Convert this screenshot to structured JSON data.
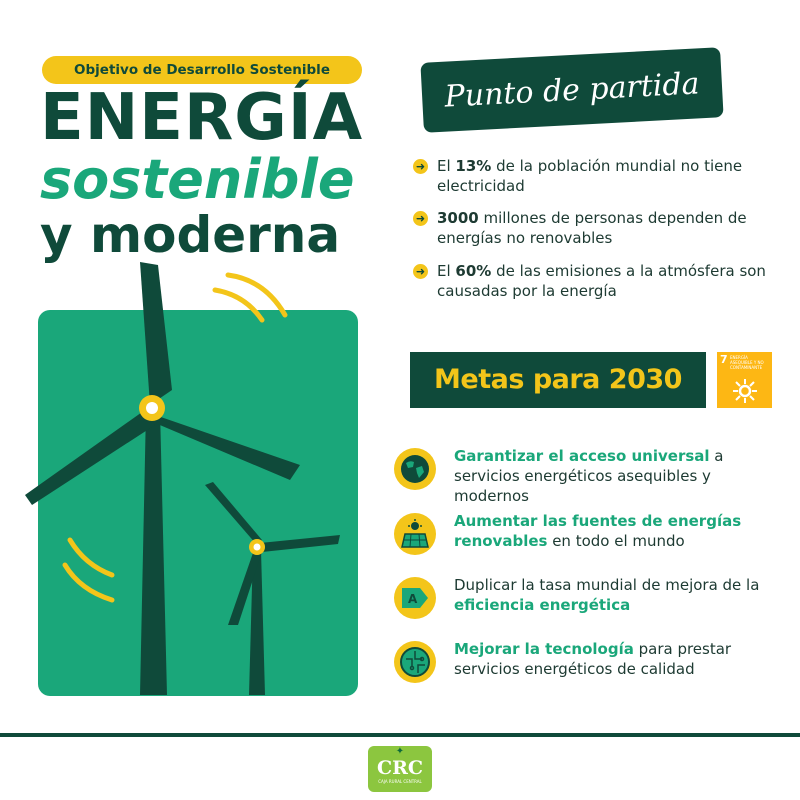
{
  "header": {
    "pill": "Objetivo de Desarrollo Sostenible",
    "title_line1": "ENERGÍA",
    "title_line2": "sostenible",
    "title_line3": "y moderna"
  },
  "punto": {
    "title": "Punto de partida",
    "bullets": [
      {
        "pre": "El ",
        "bold": "13%",
        "post": " de la población mundial no tiene electricidad"
      },
      {
        "pre": "",
        "bold": "3000",
        "post": " millones de personas dependen de energías no renovables"
      },
      {
        "pre": "El ",
        "bold": "60%",
        "post": " de las emisiones a la atmósfera son causadas por la energía"
      }
    ]
  },
  "metas": {
    "title": "Metas para 2030",
    "sdg_number": "7",
    "sdg_label": "ENERGÍA ASEQUIBLE Y NO CONTAMINANTE"
  },
  "goals": [
    {
      "icon": "globe-icon",
      "pre": "",
      "hl": "Garantizar el acceso universal",
      "post": " a servicios energéticos asequibles y modernos"
    },
    {
      "icon": "solar-panel-icon",
      "pre": "",
      "hl": "Aumentar las fuentes de energías renovables",
      "post": " en todo el mundo"
    },
    {
      "icon": "energy-rating-a-icon",
      "pre": "Duplicar la tasa mundial de mejora de la ",
      "hl": "eficiencia energética",
      "post": ""
    },
    {
      "icon": "circuit-icon",
      "pre": "",
      "hl": "Mejorar la tecnología",
      "post": " para prestar servicios energéticos de calidad"
    }
  ],
  "footer": {
    "logo": "CRC",
    "logo_sub": "CAJA RURAL CENTRAL"
  },
  "colors": {
    "dark_green": "#0f4a3a",
    "green": "#1aa77a",
    "yellow": "#f3c51a",
    "sdg_orange": "#fdb714",
    "logo_green": "#8cc63f"
  }
}
